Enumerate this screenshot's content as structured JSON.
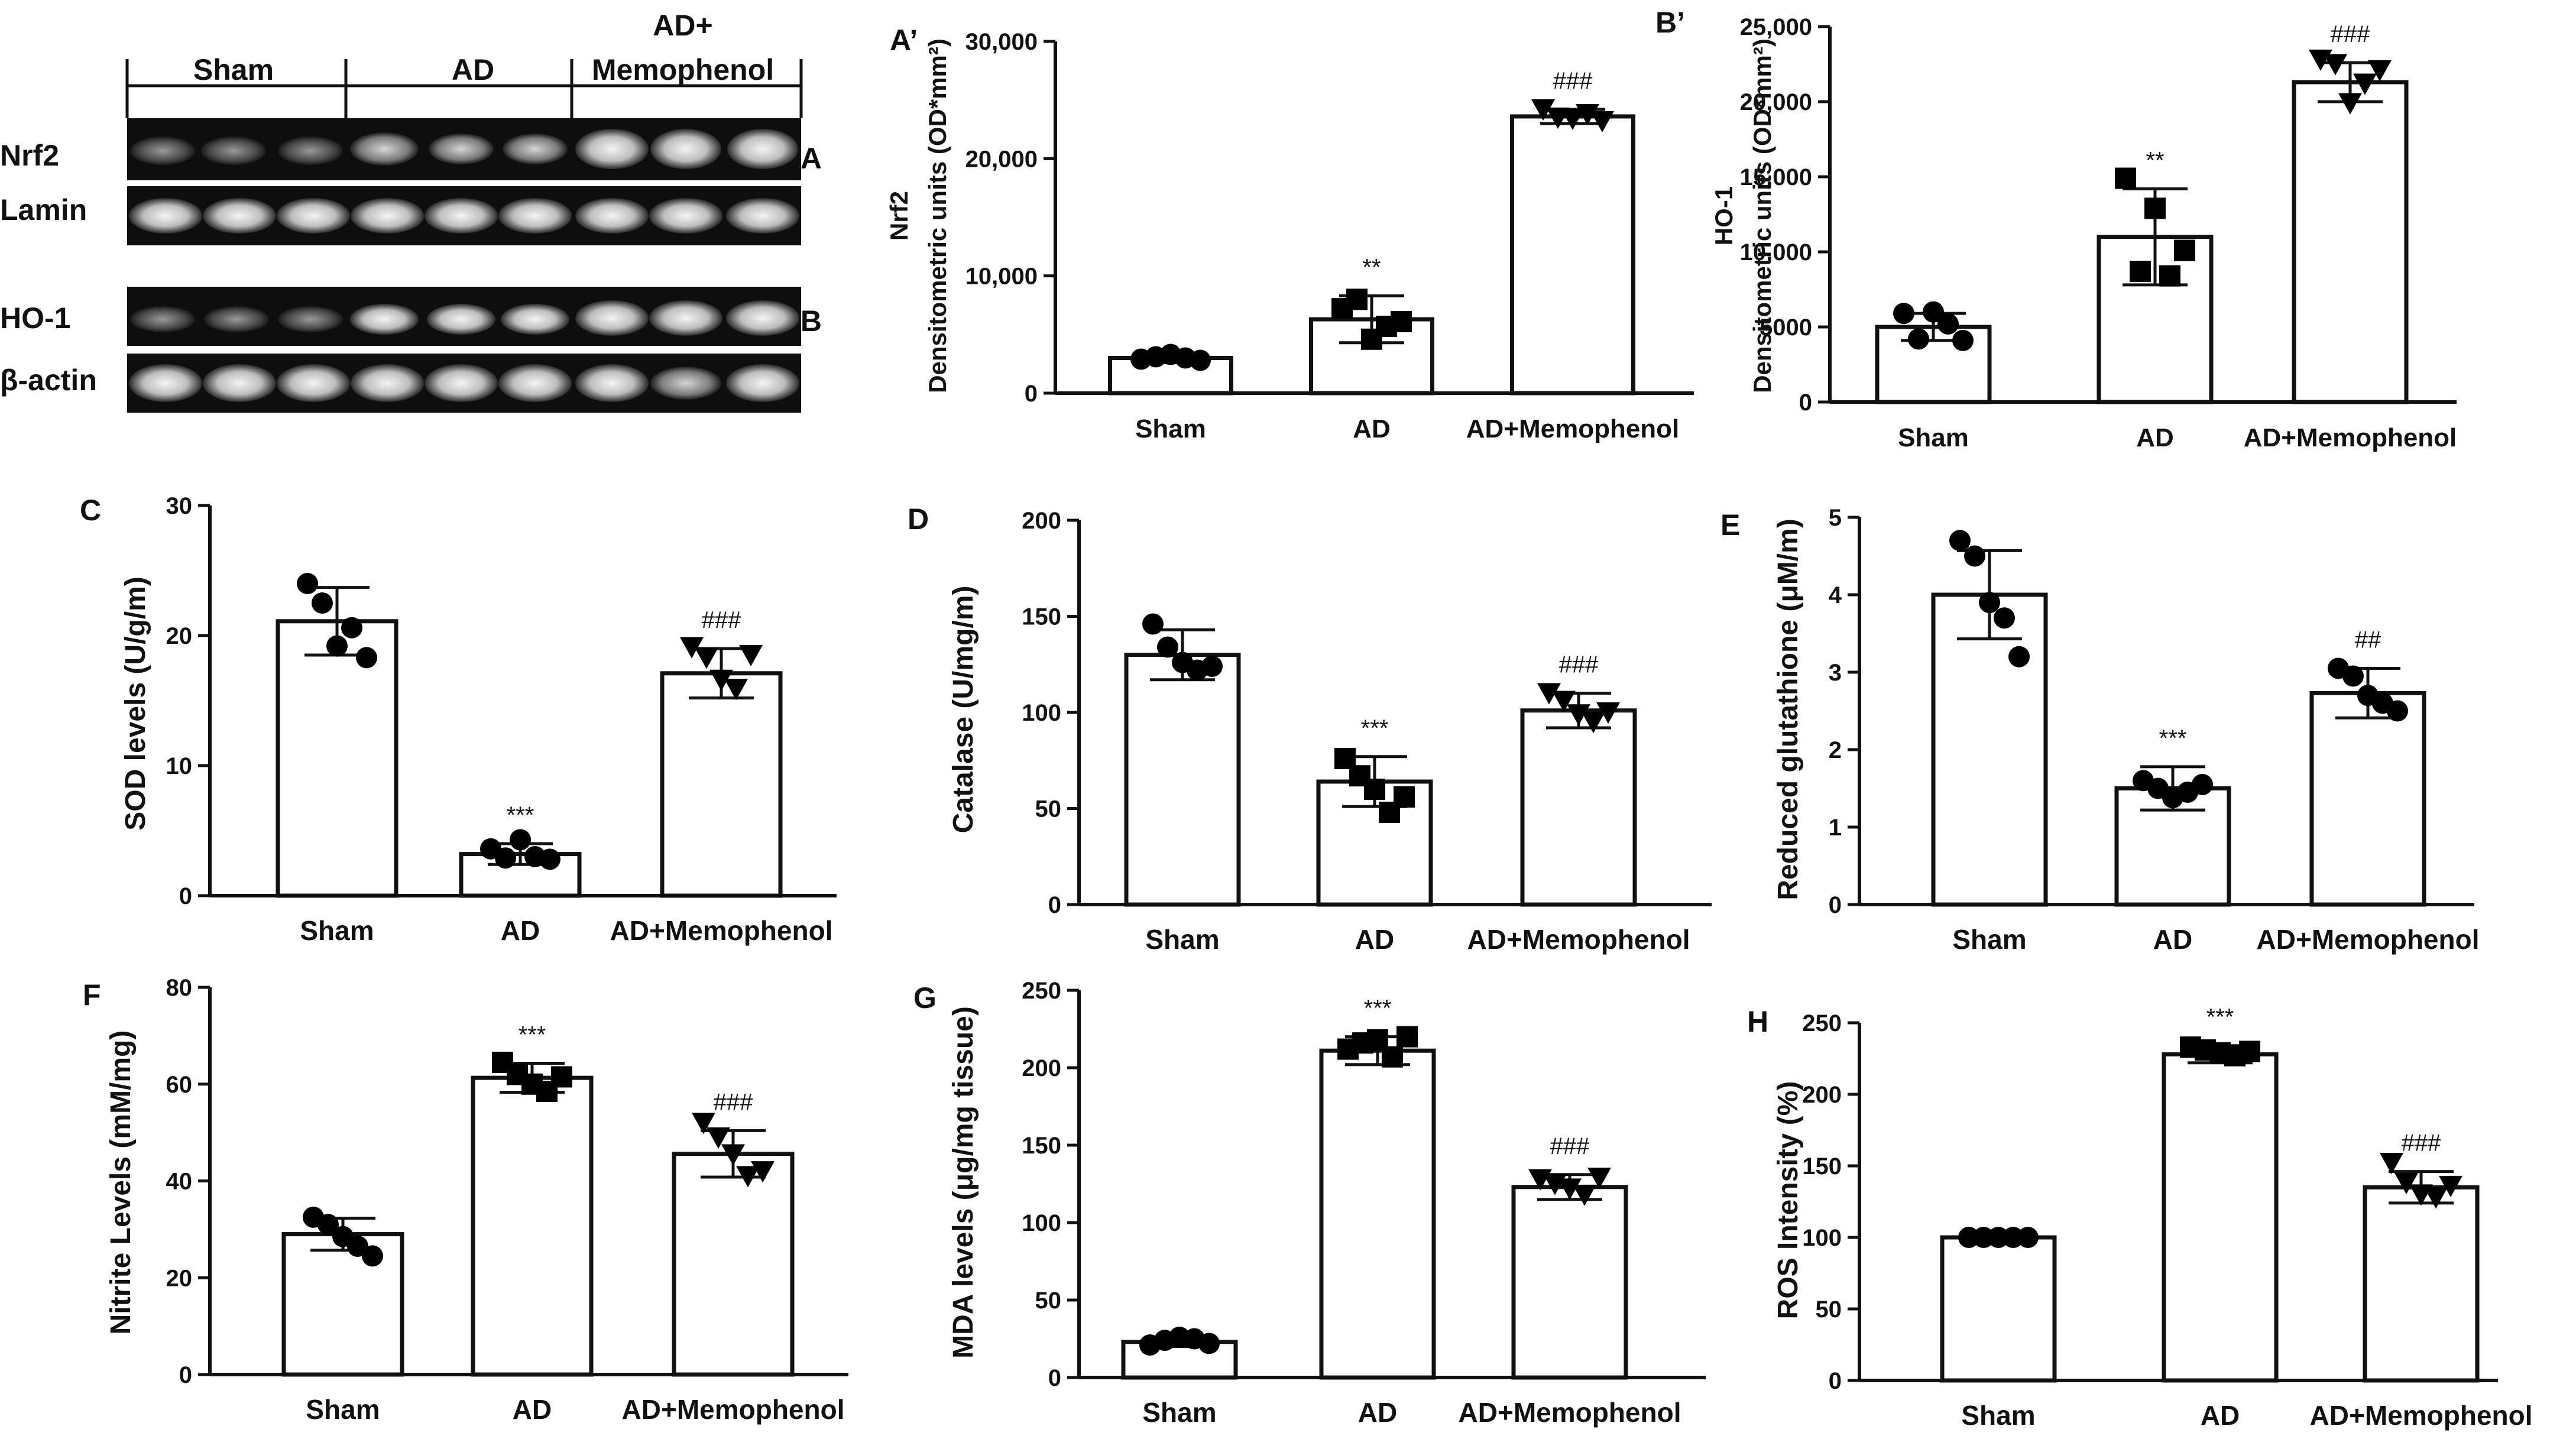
{
  "blot": {
    "group_labels": [
      "Sham",
      "AD",
      "AD+\nMemophenol"
    ],
    "group_label_lines": {
      "sham": "Sham",
      "ad": "AD",
      "adm_line1": "AD+",
      "adm_line2": "Memophenol"
    },
    "rows": [
      {
        "label": "Nrf2",
        "panel": "A"
      },
      {
        "label": "Lamin",
        "panel": ""
      },
      {
        "label": "HO-1",
        "panel": "B"
      },
      {
        "label": "β-actin",
        "panel": ""
      }
    ]
  },
  "chart_data": [
    {
      "panel": "A’",
      "type": "bar",
      "ylabel_line1": "Nrf2",
      "ylabel_line2": "Densitometric units (OD*mm²)",
      "categories": [
        "Sham",
        "AD",
        "AD+Memophenol"
      ],
      "ylim": [
        0,
        30000
      ],
      "yticks": [
        0,
        10000,
        20000,
        30000
      ],
      "yticklabels": [
        "0",
        "10,000",
        "20,000",
        "30,000"
      ],
      "values": [
        3000,
        6300,
        23600
      ],
      "sd": [
        400,
        2000,
        600
      ],
      "markers": [
        "circle",
        "square",
        "triangle"
      ],
      "points": [
        [
          2900,
          3100,
          3300,
          3000,
          2800
        ],
        [
          7200,
          8000,
          4600,
          5700,
          6100
        ],
        [
          24200,
          23500,
          23400,
          23800,
          23200
        ]
      ],
      "annotations": [
        "",
        "**",
        "###"
      ]
    },
    {
      "panel": "B’",
      "type": "bar",
      "ylabel_line1": "HO-1",
      "ylabel_line2": "Densitometric units (OD*mm²)",
      "categories": [
        "Sham",
        "AD",
        "AD+Memophenol"
      ],
      "ylim": [
        0,
        25000
      ],
      "yticks": [
        0,
        5000,
        10000,
        15000,
        20000,
        25000
      ],
      "yticklabels": [
        "0",
        "5000",
        "10,000",
        "15,000",
        "20,000",
        "25,000"
      ],
      "values": [
        5000,
        11000,
        21300
      ],
      "sd": [
        900,
        3200,
        1300
      ],
      "markers": [
        "circle",
        "square",
        "triangle"
      ],
      "points": [
        [
          5900,
          4200,
          6000,
          5200,
          4100
        ],
        [
          14900,
          8700,
          12900,
          8400,
          10100
        ],
        [
          22800,
          22500,
          19900,
          21200,
          22100
        ]
      ],
      "annotations": [
        "",
        "**",
        "###"
      ]
    },
    {
      "panel": "C",
      "type": "bar",
      "ylabel": "SOD levels (U/g/m)",
      "categories": [
        "Sham",
        "AD",
        "AD+Memophenol"
      ],
      "ylim": [
        0,
        30
      ],
      "yticks": [
        0,
        10,
        20,
        30
      ],
      "yticklabels": [
        "0",
        "10",
        "20",
        "30"
      ],
      "values": [
        21.1,
        3.2,
        17.1
      ],
      "sd": [
        2.6,
        0.8,
        1.9
      ],
      "markers": [
        "circle",
        "circle",
        "triangle"
      ],
      "points": [
        [
          24,
          22.5,
          19.2,
          20.6,
          18.3
        ],
        [
          3.6,
          2.9,
          4.3,
          3.0,
          2.8
        ],
        [
          19.1,
          18.3,
          16.6,
          15.9,
          18.5
        ]
      ],
      "annotations": [
        "",
        "***",
        "###"
      ]
    },
    {
      "panel": "D",
      "type": "bar",
      "ylabel": "Catalase (U/mg/m)",
      "categories": [
        "Sham",
        "AD",
        "AD+Memophenol"
      ],
      "ylim": [
        0,
        200
      ],
      "yticks": [
        0,
        50,
        100,
        150,
        200
      ],
      "yticklabels": [
        "0",
        "50",
        "100",
        "150",
        "200"
      ],
      "values": [
        130,
        64,
        101
      ],
      "sd": [
        13,
        13,
        9
      ],
      "markers": [
        "circle",
        "square",
        "triangle"
      ],
      "points": [
        [
          146,
          134,
          126,
          122,
          124
        ],
        [
          76,
          67,
          60,
          48,
          56
        ],
        [
          110,
          106,
          99,
          95,
          100
        ]
      ],
      "annotations": [
        "",
        "***",
        "###"
      ]
    },
    {
      "panel": "E",
      "type": "bar",
      "ylabel": "Reduced glutathione (μM/m)",
      "categories": [
        "Sham",
        "AD",
        "AD+Memophenol"
      ],
      "ylim": [
        0,
        5
      ],
      "yticks": [
        0,
        1,
        2,
        3,
        4,
        5
      ],
      "yticklabels": [
        "0",
        "1",
        "2",
        "3",
        "4",
        "5"
      ],
      "values": [
        4.0,
        1.5,
        2.73
      ],
      "sd": [
        0.57,
        0.28,
        0.32
      ],
      "markers": [
        "circle",
        "circle",
        "circle"
      ],
      "points": [
        [
          4.7,
          4.5,
          3.9,
          3.7,
          3.2
        ],
        [
          1.6,
          1.5,
          1.38,
          1.45,
          1.55
        ],
        [
          3.05,
          2.95,
          2.7,
          2.6,
          2.5
        ]
      ],
      "annotations": [
        "",
        "***",
        "##"
      ]
    },
    {
      "panel": "F",
      "type": "bar",
      "ylabel": "Nitrite Levels (mM/mg)",
      "categories": [
        "Sham",
        "AD",
        "AD+Memophenol"
      ],
      "ylim": [
        0,
        80
      ],
      "yticks": [
        0,
        20,
        40,
        60,
        80
      ],
      "yticklabels": [
        "0",
        "20",
        "40",
        "60",
        "80"
      ],
      "values": [
        29,
        61.3,
        45.6
      ],
      "sd": [
        3.3,
        3.0,
        4.8
      ],
      "markers": [
        "circle",
        "square",
        "triangle"
      ],
      "points": [
        [
          32.5,
          31,
          28.5,
          26.5,
          24.5
        ],
        [
          64.5,
          62,
          60,
          58.5,
          61.5
        ],
        [
          52,
          49,
          45.5,
          41,
          42
        ]
      ],
      "annotations": [
        "",
        "***",
        "###"
      ]
    },
    {
      "panel": "G",
      "type": "bar",
      "ylabel": "MDA levels (μg/mg tissue)",
      "categories": [
        "Sham",
        "AD",
        "AD+Memophenol"
      ],
      "ylim": [
        0,
        250
      ],
      "yticks": [
        0,
        50,
        100,
        150,
        200,
        250
      ],
      "yticklabels": [
        "0",
        "50",
        "100",
        "150",
        "200",
        "250"
      ],
      "values": [
        23,
        211,
        123
      ],
      "sd": [
        3,
        9,
        8
      ],
      "markers": [
        "circle",
        "square",
        "triangle"
      ],
      "points": [
        [
          21,
          24,
          26,
          25,
          22
        ],
        [
          212,
          216,
          218,
          207,
          220
        ],
        [
          128,
          125,
          122,
          118,
          129
        ]
      ],
      "annotations": [
        "",
        "***",
        "###"
      ]
    },
    {
      "panel": "H",
      "type": "bar",
      "ylabel": "ROS Intensity (%)",
      "categories": [
        "Sham",
        "AD",
        "AD+Memophenol"
      ],
      "ylim": [
        0,
        250
      ],
      "yticks": [
        0,
        50,
        100,
        150,
        200,
        250
      ],
      "yticklabels": [
        "0",
        "50",
        "100",
        "150",
        "200",
        "250"
      ],
      "values": [
        100,
        228,
        135
      ],
      "sd": [
        1,
        6,
        11
      ],
      "markers": [
        "circle",
        "square",
        "triangle"
      ],
      "points": [
        [
          100,
          100,
          100,
          100,
          100
        ],
        [
          233,
          231,
          229,
          227,
          230
        ],
        [
          152,
          138,
          130,
          128,
          136
        ]
      ],
      "annotations": [
        "",
        "***",
        "###"
      ]
    }
  ]
}
